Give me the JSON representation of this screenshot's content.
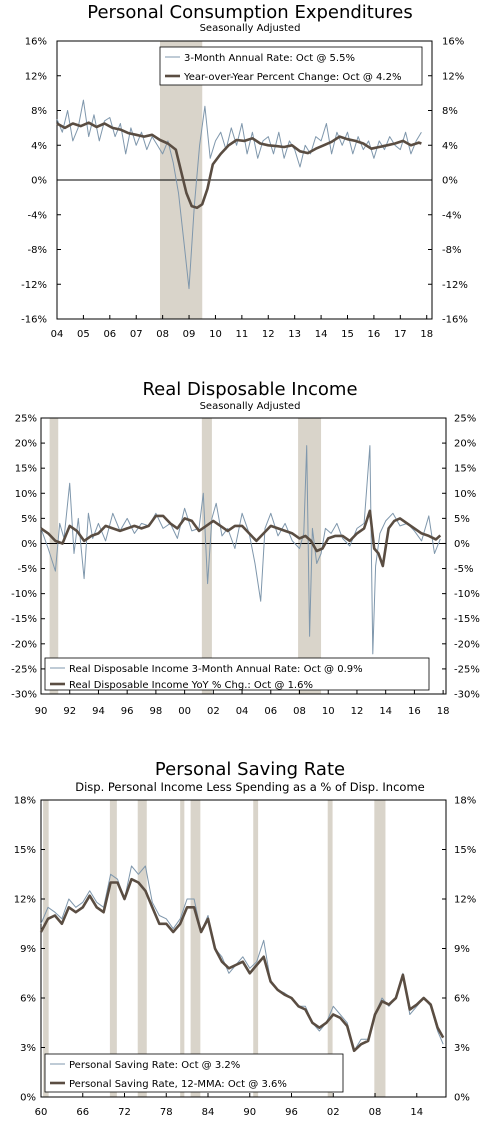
{
  "chart_data": [
    {
      "type": "line",
      "title": "Personal Consumption Expenditures",
      "subtitle": "Seasonally Adjusted",
      "xlabel": "",
      "ylabel": "",
      "x_ticks": [
        "04",
        "05",
        "06",
        "07",
        "08",
        "09",
        "10",
        "11",
        "12",
        "13",
        "14",
        "15",
        "16",
        "17",
        "18"
      ],
      "x_range": [
        2004.0,
        2018.2
      ],
      "ylim": [
        -16,
        16
      ],
      "y_ticks": [
        -16,
        -12,
        -8,
        -4,
        0,
        4,
        8,
        12,
        16
      ],
      "y_tick_format": "pct0",
      "grid": false,
      "legend_position": "top-center",
      "recessions": [
        [
          2007.9,
          2009.5
        ]
      ],
      "series": [
        {
          "name": "3-Month Annual Rate: Oct @ 5.5%",
          "color": "#7f97ac",
          "width": 1,
          "x": [
            2004.0,
            2004.2,
            2004.4,
            2004.6,
            2004.8,
            2005.0,
            2005.2,
            2005.4,
            2005.6,
            2005.8,
            2006.0,
            2006.2,
            2006.4,
            2006.6,
            2006.8,
            2007.0,
            2007.2,
            2007.4,
            2007.6,
            2007.8,
            2008.0,
            2008.2,
            2008.4,
            2008.6,
            2008.8,
            2009.0,
            2009.2,
            2009.4,
            2009.6,
            2009.8,
            2010.0,
            2010.2,
            2010.4,
            2010.6,
            2010.8,
            2011.0,
            2011.2,
            2011.4,
            2011.6,
            2011.8,
            2012.0,
            2012.2,
            2012.4,
            2012.6,
            2012.8,
            2013.0,
            2013.2,
            2013.4,
            2013.6,
            2013.8,
            2014.0,
            2014.2,
            2014.4,
            2014.6,
            2014.8,
            2015.0,
            2015.2,
            2015.4,
            2015.6,
            2015.8,
            2016.0,
            2016.2,
            2016.4,
            2016.6,
            2016.8,
            2017.0,
            2017.2,
            2017.4,
            2017.6,
            2017.8
          ],
          "y": [
            7.0,
            5.5,
            8.0,
            4.5,
            6.0,
            9.2,
            5.0,
            7.5,
            4.5,
            6.8,
            7.2,
            5.0,
            6.5,
            3.0,
            6.0,
            4.0,
            5.5,
            3.5,
            5.0,
            4.0,
            3.0,
            4.5,
            2.0,
            -1.5,
            -7.0,
            -12.5,
            -3.0,
            4.0,
            8.5,
            2.5,
            4.5,
            5.5,
            3.5,
            6.0,
            4.0,
            6.5,
            3.0,
            5.5,
            2.5,
            4.5,
            5.0,
            3.0,
            5.5,
            2.5,
            4.5,
            3.5,
            1.5,
            4.0,
            3.0,
            5.0,
            4.5,
            6.5,
            3.0,
            5.5,
            4.0,
            5.5,
            3.0,
            5.0,
            3.5,
            4.5,
            2.5,
            4.5,
            3.5,
            5.0,
            4.0,
            3.5,
            5.5,
            3.0,
            4.5,
            5.5
          ]
        },
        {
          "name": "Year-over-Year Percent Change: Oct @ 4.2%",
          "color": "#5a4d42",
          "width": 2.6,
          "x": [
            2004.0,
            2004.3,
            2004.6,
            2004.9,
            2005.2,
            2005.5,
            2005.8,
            2006.1,
            2006.4,
            2006.7,
            2007.0,
            2007.3,
            2007.6,
            2007.9,
            2008.2,
            2008.5,
            2008.7,
            2008.9,
            2009.1,
            2009.3,
            2009.5,
            2009.7,
            2009.9,
            2010.2,
            2010.5,
            2010.8,
            2011.1,
            2011.4,
            2011.7,
            2012.0,
            2012.3,
            2012.6,
            2012.9,
            2013.2,
            2013.5,
            2013.8,
            2014.1,
            2014.4,
            2014.7,
            2015.0,
            2015.3,
            2015.6,
            2015.9,
            2016.2,
            2016.5,
            2016.8,
            2017.1,
            2017.4,
            2017.7,
            2017.8
          ],
          "y": [
            6.5,
            6.0,
            6.5,
            6.2,
            6.6,
            6.1,
            6.5,
            6.0,
            5.8,
            5.4,
            5.2,
            5.0,
            5.2,
            4.6,
            4.2,
            3.5,
            1.0,
            -1.5,
            -3.0,
            -3.2,
            -2.8,
            -1.0,
            1.8,
            3.0,
            4.0,
            4.6,
            4.5,
            4.8,
            4.2,
            4.0,
            3.9,
            3.8,
            4.0,
            3.3,
            3.1,
            3.6,
            4.0,
            4.4,
            5.0,
            4.7,
            4.5,
            4.2,
            3.6,
            3.8,
            4.0,
            4.2,
            4.5,
            4.0,
            4.3,
            4.2
          ]
        }
      ]
    },
    {
      "type": "line",
      "title": "Real Disposable Income",
      "subtitle": "Seasonally Adjusted",
      "xlabel": "",
      "ylabel": "",
      "x_ticks": [
        "90",
        "92",
        "94",
        "96",
        "98",
        "00",
        "02",
        "04",
        "06",
        "08",
        "10",
        "12",
        "14",
        "16",
        "18"
      ],
      "x_range": [
        1990.0,
        2018.2
      ],
      "ylim": [
        -30,
        25
      ],
      "y_ticks": [
        -30,
        -25,
        -20,
        -15,
        -10,
        -5,
        0,
        5,
        10,
        15,
        20,
        25
      ],
      "y_tick_format": "pct0",
      "grid": false,
      "legend_position": "bottom-left",
      "recessions": [
        [
          1990.6,
          1991.2
        ],
        [
          2001.2,
          2001.9
        ],
        [
          2007.9,
          2009.5
        ]
      ],
      "series": [
        {
          "name": "Real Disposable Income 3-Month Annual Rate: Oct @ 0.9%",
          "color": "#7f97ac",
          "width": 1,
          "x": [
            1990.0,
            1990.5,
            1991.0,
            1991.3,
            1991.6,
            1992.0,
            1992.3,
            1992.6,
            1993.0,
            1993.3,
            1993.6,
            1994.0,
            1994.5,
            1995.0,
            1995.5,
            1996.0,
            1996.5,
            1997.0,
            1997.5,
            1998.0,
            1998.5,
            1999.0,
            1999.5,
            2000.0,
            2000.5,
            2001.0,
            2001.3,
            2001.6,
            2001.9,
            2002.2,
            2002.6,
            2003.0,
            2003.5,
            2004.0,
            2004.5,
            2004.9,
            2005.3,
            2005.6,
            2006.0,
            2006.5,
            2007.0,
            2007.5,
            2008.0,
            2008.3,
            2008.5,
            2008.7,
            2008.9,
            2009.2,
            2009.5,
            2009.8,
            2010.2,
            2010.6,
            2011.0,
            2011.5,
            2012.0,
            2012.5,
            2012.9,
            2013.1,
            2013.3,
            2013.6,
            2014.0,
            2014.5,
            2015.0,
            2015.5,
            2016.0,
            2016.5,
            2017.0,
            2017.4,
            2017.8
          ],
          "y": [
            3.0,
            -1.0,
            -5.5,
            4.0,
            1.0,
            12.0,
            -2.0,
            5.0,
            -7.0,
            6.0,
            1.0,
            4.0,
            0.5,
            6.0,
            2.5,
            5.0,
            2.0,
            4.0,
            3.5,
            6.0,
            3.0,
            4.0,
            1.0,
            7.0,
            2.5,
            3.0,
            10.0,
            -8.0,
            5.0,
            8.0,
            1.5,
            3.0,
            -1.0,
            6.0,
            2.0,
            -4.0,
            -11.5,
            3.0,
            6.0,
            1.5,
            4.0,
            0.5,
            -1.0,
            2.0,
            19.5,
            -18.5,
            3.0,
            -4.0,
            -2.0,
            3.0,
            2.0,
            4.0,
            1.0,
            -0.5,
            3.0,
            4.0,
            19.5,
            -22.0,
            -4.5,
            2.0,
            4.5,
            6.0,
            3.5,
            4.0,
            2.5,
            0.5,
            5.5,
            -2.0,
            0.9
          ]
        },
        {
          "name": "Real Disposable Income YoY % Chg.: Oct @ 1.6%",
          "color": "#5a4d42",
          "width": 2.6,
          "x": [
            1990.0,
            1990.5,
            1991.0,
            1991.5,
            1992.0,
            1992.5,
            1993.0,
            1993.5,
            1994.0,
            1994.5,
            1995.0,
            1995.5,
            1996.0,
            1996.5,
            1997.0,
            1997.5,
            1998.0,
            1998.5,
            1999.0,
            1999.5,
            2000.0,
            2000.5,
            2001.0,
            2001.5,
            2002.0,
            2002.5,
            2003.0,
            2003.5,
            2004.0,
            2004.5,
            2005.0,
            2005.5,
            2006.0,
            2006.5,
            2007.0,
            2007.5,
            2008.0,
            2008.4,
            2008.8,
            2009.2,
            2009.6,
            2010.0,
            2010.5,
            2011.0,
            2011.5,
            2012.0,
            2012.5,
            2012.9,
            2013.2,
            2013.5,
            2013.8,
            2014.2,
            2014.6,
            2015.0,
            2015.5,
            2016.0,
            2016.5,
            2017.0,
            2017.5,
            2017.8
          ],
          "y": [
            3.0,
            2.0,
            0.5,
            0.0,
            3.5,
            2.5,
            0.5,
            1.5,
            2.0,
            3.5,
            3.0,
            2.5,
            3.0,
            3.5,
            3.0,
            3.5,
            5.5,
            5.5,
            4.0,
            3.0,
            5.0,
            4.5,
            2.5,
            3.5,
            4.5,
            3.5,
            2.5,
            3.5,
            3.5,
            2.0,
            0.5,
            2.0,
            3.5,
            3.0,
            2.5,
            2.0,
            1.0,
            1.5,
            0.5,
            -1.5,
            -1.0,
            1.0,
            1.5,
            1.5,
            0.5,
            2.0,
            3.0,
            6.5,
            -1.0,
            -2.0,
            -4.5,
            3.0,
            4.5,
            5.0,
            4.0,
            3.0,
            2.0,
            1.5,
            0.8,
            1.6
          ]
        }
      ]
    },
    {
      "type": "line",
      "title": "Personal Saving Rate",
      "subtitle": "Disp. Personal Income Less Spending as a % of Disp. Income",
      "xlabel": "",
      "ylabel": "",
      "x_ticks": [
        "60",
        "66",
        "72",
        "78",
        "84",
        "90",
        "96",
        "02",
        "08",
        "14"
      ],
      "x_range": [
        1960.0,
        2018.2
      ],
      "ylim": [
        0,
        18
      ],
      "y_ticks": [
        0,
        3,
        6,
        9,
        12,
        15,
        18
      ],
      "y_tick_format": "pct0",
      "grid": false,
      "legend_position": "bottom-left",
      "recessions": [
        [
          1960.3,
          1961.1
        ],
        [
          1969.9,
          1970.9
        ],
        [
          1973.9,
          1975.2
        ],
        [
          1980.0,
          1980.6
        ],
        [
          1981.5,
          1982.9
        ],
        [
          1990.5,
          1991.2
        ],
        [
          2001.2,
          2001.9
        ],
        [
          2007.9,
          2009.5
        ]
      ],
      "series": [
        {
          "name": "Personal Saving Rate: Oct @ 3.2%",
          "color": "#7f97ac",
          "width": 1,
          "x": [
            1960,
            1961,
            1962,
            1963,
            1964,
            1965,
            1966,
            1967,
            1968,
            1969,
            1970,
            1971,
            1972,
            1973,
            1974,
            1975,
            1976,
            1977,
            1978,
            1979,
            1980,
            1981,
            1982,
            1983,
            1984,
            1985,
            1986,
            1987,
            1988,
            1989,
            1990,
            1991,
            1992,
            1993,
            1994,
            1995,
            1996,
            1997,
            1998,
            1999,
            2000,
            2001,
            2002,
            2003,
            2004,
            2005,
            2006,
            2007,
            2008,
            2009,
            2010,
            2011,
            2012,
            2013,
            2014,
            2015,
            2016,
            2017,
            2017.8
          ],
          "y": [
            10.5,
            11.5,
            11.2,
            10.8,
            12.0,
            11.5,
            11.8,
            12.5,
            11.8,
            11.5,
            13.5,
            13.2,
            12.0,
            14.0,
            13.5,
            14.0,
            11.8,
            11.0,
            10.8,
            10.2,
            10.8,
            12.0,
            12.0,
            10.0,
            11.0,
            9.0,
            8.5,
            7.5,
            8.0,
            8.5,
            7.8,
            8.2,
            9.5,
            7.0,
            6.5,
            6.3,
            6.0,
            5.5,
            5.5,
            4.5,
            4.0,
            4.5,
            5.5,
            5.0,
            4.5,
            2.8,
            3.5,
            3.5,
            5.0,
            6.0,
            5.5,
            6.0,
            7.5,
            5.0,
            5.5,
            6.0,
            5.5,
            4.0,
            3.2
          ]
        },
        {
          "name": "Personal Saving Rate, 12-MMA: Oct @ 3.6%",
          "color": "#5a4d42",
          "width": 2.6,
          "x": [
            1960,
            1961,
            1962,
            1963,
            1964,
            1965,
            1966,
            1967,
            1968,
            1969,
            1970,
            1971,
            1972,
            1973,
            1974,
            1975,
            1976,
            1977,
            1978,
            1979,
            1980,
            1981,
            1982,
            1983,
            1984,
            1985,
            1986,
            1987,
            1988,
            1989,
            1990,
            1991,
            1992,
            1993,
            1994,
            1995,
            1996,
            1997,
            1998,
            1999,
            2000,
            2001,
            2002,
            2003,
            2004,
            2005,
            2006,
            2007,
            2008,
            2009,
            2010,
            2011,
            2012,
            2013,
            2014,
            2015,
            2016,
            2017,
            2017.8
          ],
          "y": [
            10.0,
            10.8,
            11.0,
            10.5,
            11.5,
            11.2,
            11.5,
            12.2,
            11.5,
            11.2,
            13.0,
            13.0,
            12.0,
            13.2,
            13.0,
            12.5,
            11.5,
            10.5,
            10.5,
            10.0,
            10.5,
            11.5,
            11.5,
            10.0,
            10.8,
            9.0,
            8.2,
            7.8,
            8.0,
            8.2,
            7.5,
            8.0,
            8.5,
            7.0,
            6.5,
            6.2,
            6.0,
            5.5,
            5.3,
            4.5,
            4.2,
            4.5,
            5.0,
            4.8,
            4.3,
            2.8,
            3.2,
            3.4,
            5.0,
            5.8,
            5.6,
            6.0,
            7.4,
            5.3,
            5.6,
            6.0,
            5.6,
            4.2,
            3.6
          ]
        }
      ]
    }
  ]
}
